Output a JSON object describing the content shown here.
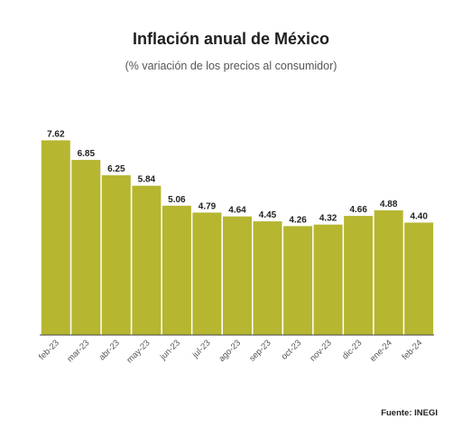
{
  "header": {
    "title": "Inflación anual de México",
    "subtitle": "(% variación de los precios al consumidor)"
  },
  "footer": {
    "source": "Fuente: INEGI"
  },
  "colors": {
    "bar": "#b6b631",
    "axis": "#444444"
  },
  "chart_data": {
    "type": "bar",
    "title": "Inflación anual de México",
    "subtitle": "(% variación de los precios al consumidor)",
    "xlabel": "",
    "ylabel": "",
    "categories": [
      "feb-23",
      "mar-23",
      "abr-23",
      "may-23",
      "jun-23",
      "jul-23",
      "ago-23",
      "sep-23",
      "oct-23",
      "nov-23",
      "dic-23",
      "ene-24",
      "feb-24"
    ],
    "values": [
      7.62,
      6.85,
      6.25,
      5.84,
      5.06,
      4.79,
      4.64,
      4.45,
      4.26,
      4.32,
      4.66,
      4.88,
      4.4
    ],
    "value_labels": [
      "7.62",
      "6.85",
      "6.25",
      "5.84",
      "5.06",
      "4.79",
      "4.64",
      "4.45",
      "4.26",
      "4.32",
      "4.66",
      "4.88",
      "4.40"
    ],
    "ylim": [
      0,
      8
    ],
    "grid": false,
    "legend": "none"
  }
}
